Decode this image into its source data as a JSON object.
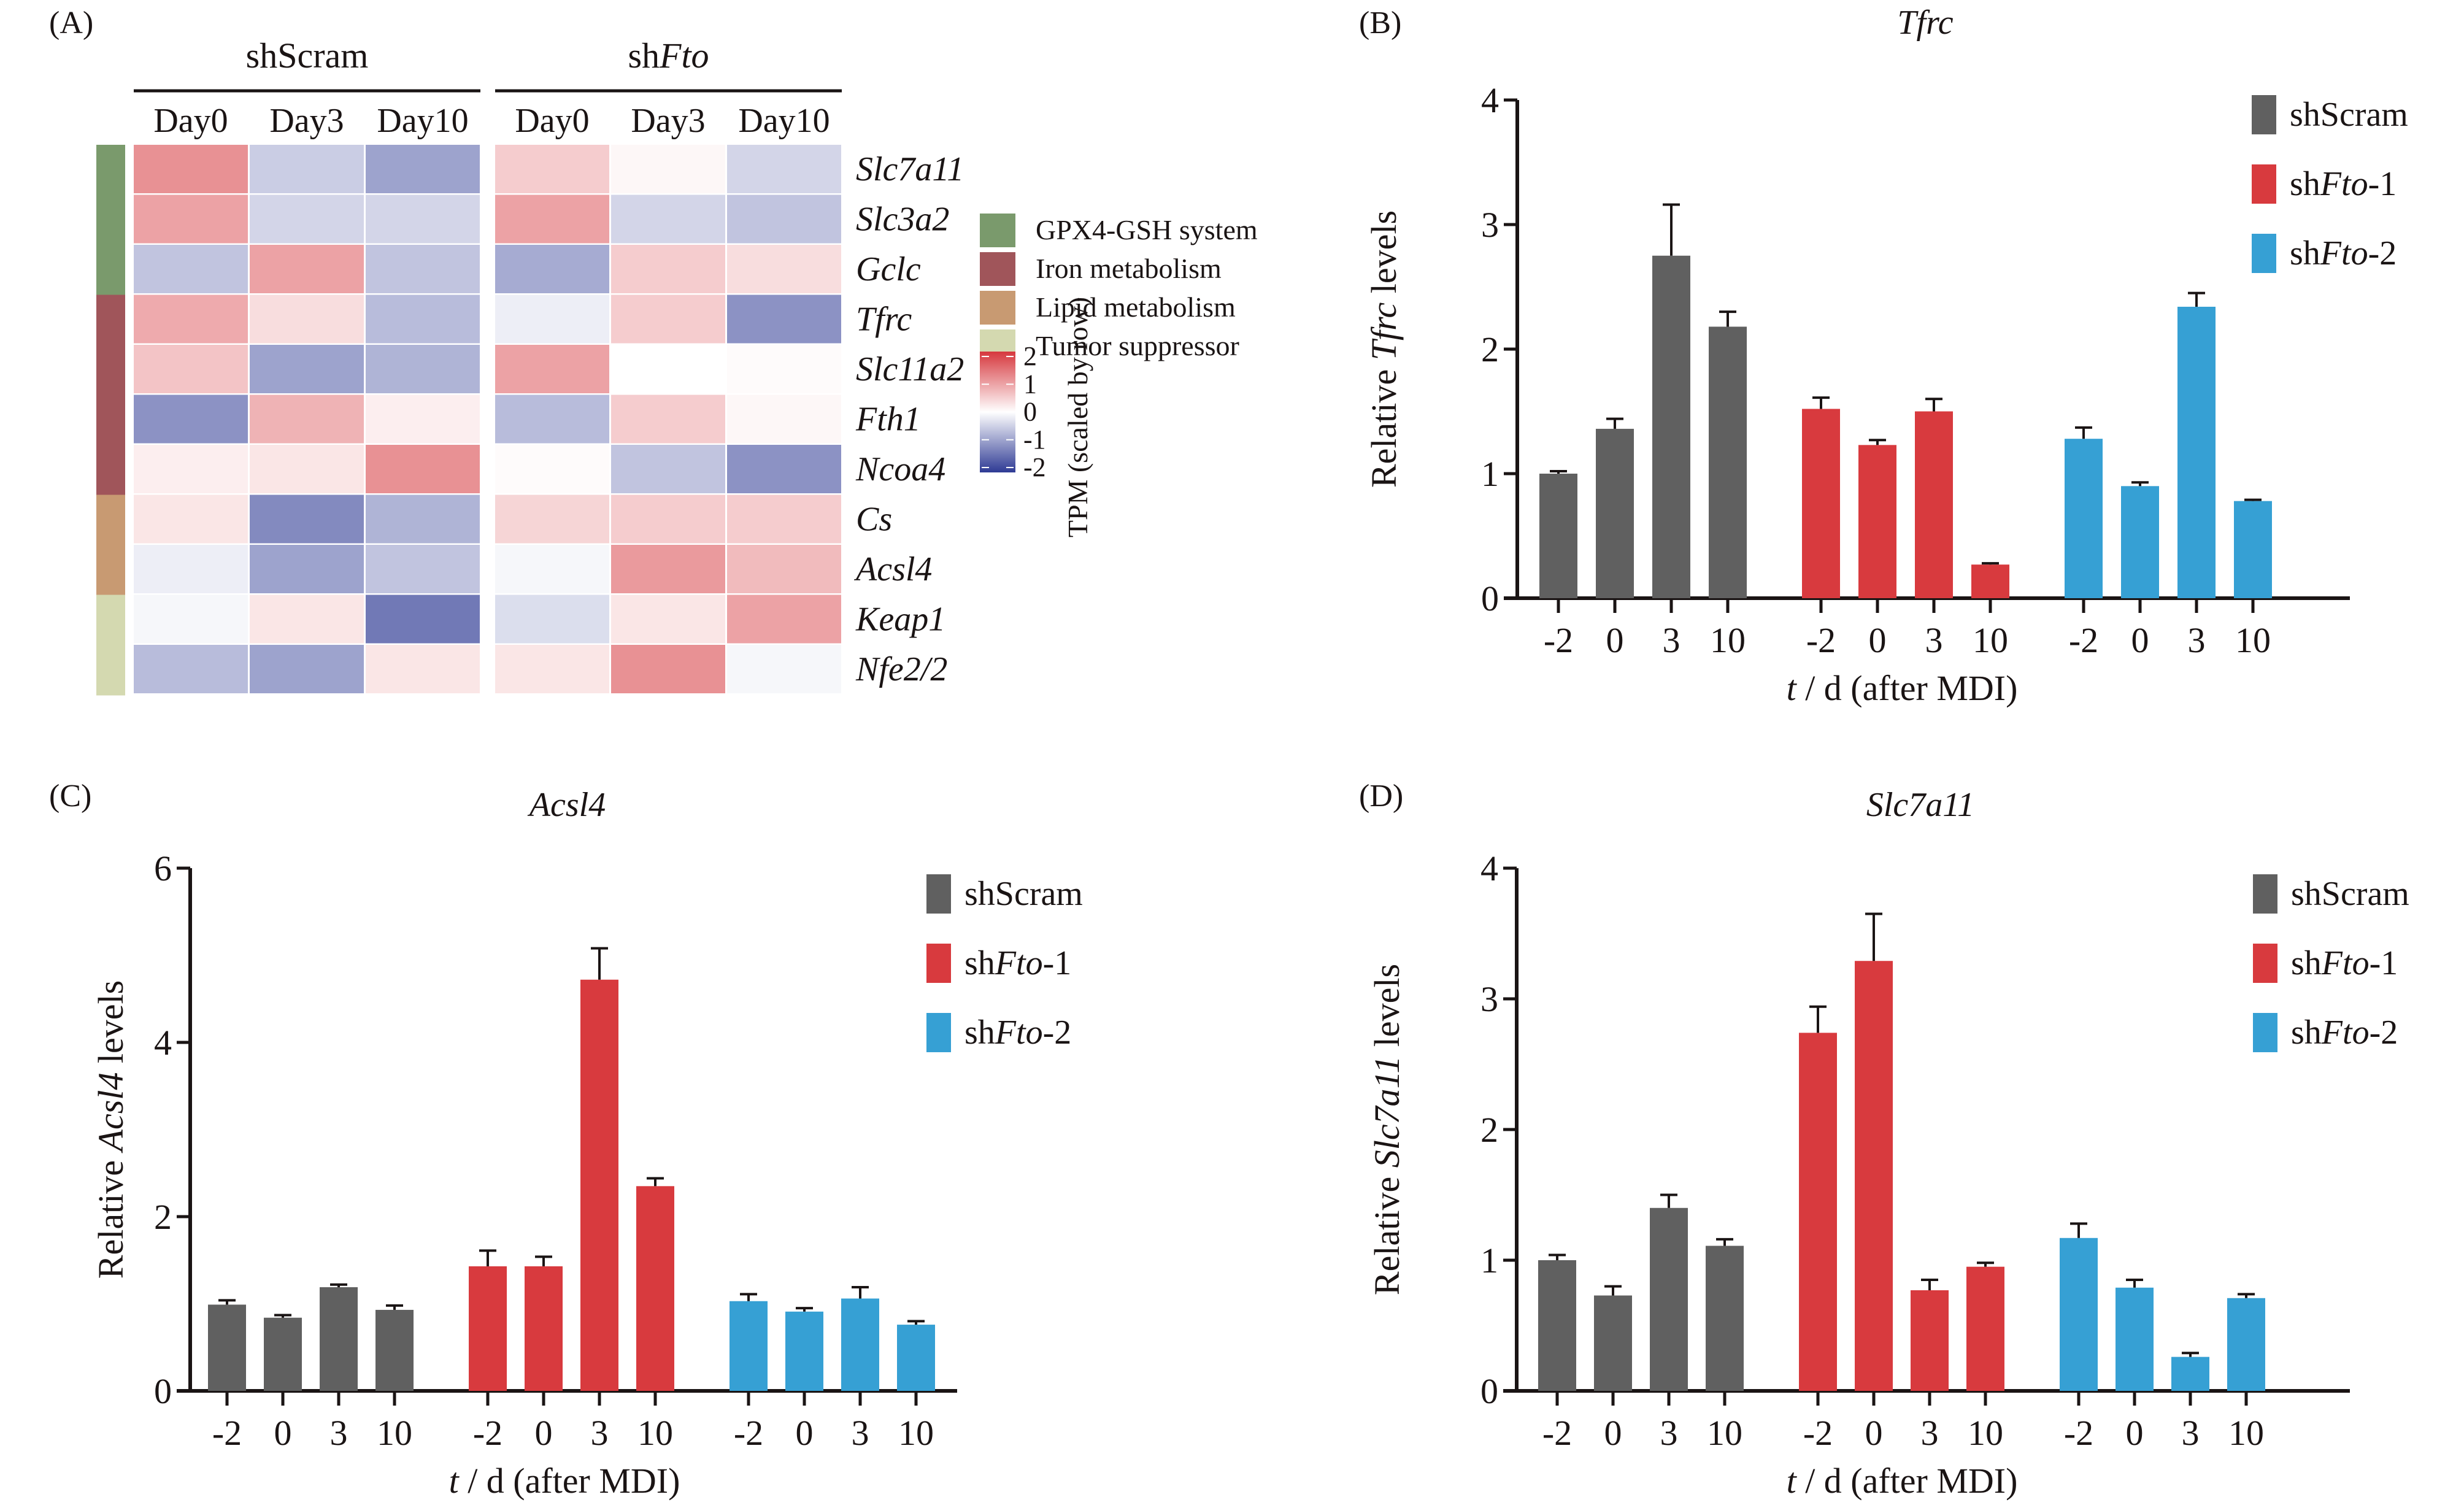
{
  "panel_labels": [
    "(A)",
    "(B)",
    "(C)",
    "(D)"
  ],
  "chart_data": [
    {
      "panel": "(A)",
      "type": "heatmap",
      "title": "",
      "group_labels": [
        {
          "prefix": "shScram",
          "italic": ""
        },
        {
          "prefix": "sh",
          "italic": "Fto"
        }
      ],
      "columns": [
        "Day0",
        "Day3",
        "Day10",
        "Day0",
        "Day3",
        "Day10"
      ],
      "rows": [
        "Slc7a11",
        "Slc3a2",
        "Gclc",
        "Tfrc",
        "Slc11a2",
        "Fth1",
        "Ncoa4",
        "Cs",
        "Acsl4",
        "Keap1",
        "Nfe2l2"
      ],
      "row_display": [
        "Slc7a11",
        "Slc3a2",
        "Gclc",
        "Tfrc",
        "Slc11a2",
        "Fth1",
        "Ncoa4",
        "Cs",
        "Acsl4",
        "Keap1",
        "Nfe2/2"
      ],
      "row_categories": [
        "GPX4-GSH system",
        "GPX4-GSH system",
        "GPX4-GSH system",
        "Iron metabolism",
        "Iron metabolism",
        "Iron metabolism",
        "Iron metabolism",
        "Lipid metabolism",
        "Lipid metabolism",
        "Tumor suppressor",
        "Tumor suppressor"
      ],
      "values": [
        [
          1.3,
          -0.6,
          -1.1,
          0.6,
          0.1,
          -0.5
        ],
        [
          1.1,
          -0.5,
          -0.5,
          1.1,
          -0.5,
          -0.7
        ],
        [
          -0.7,
          1.1,
          -0.7,
          -1.0,
          0.6,
          0.4
        ],
        [
          1.0,
          0.4,
          -0.8,
          -0.2,
          0.6,
          -1.3
        ],
        [
          0.7,
          -1.1,
          -0.9,
          1.1,
          0.0,
          0.05
        ],
        [
          -1.3,
          0.9,
          0.2,
          -0.8,
          0.6,
          0.1
        ],
        [
          0.2,
          0.3,
          1.3,
          0.05,
          -0.7,
          -1.3
        ],
        [
          0.3,
          -1.4,
          -0.9,
          0.5,
          0.6,
          0.6
        ],
        [
          -0.2,
          -1.1,
          -0.7,
          -0.1,
          1.2,
          0.8
        ],
        [
          -0.1,
          0.3,
          -1.6,
          -0.4,
          0.3,
          1.1
        ],
        [
          -0.8,
          -1.1,
          0.3,
          0.3,
          1.3,
          -0.1
        ]
      ],
      "category_legend": [
        {
          "label": "GPX4-GSH system",
          "color": "#7a9a6c"
        },
        {
          "label": "Iron metabolism",
          "color": "#a0555a"
        },
        {
          "label": "Lipid metabolism",
          "color": "#c89a72"
        },
        {
          "label": "Tumor suppressor",
          "color": "#d4d9b0"
        }
      ],
      "colorbar": {
        "label": "TPM (scaled by row)",
        "range": [
          -2,
          2
        ],
        "ticks": [
          "2",
          "1",
          "0",
          "-1",
          "-2"
        ],
        "low_color": "#2e3a94",
        "mid_color": "#ffffff",
        "high_color": "#d6383e"
      }
    },
    {
      "panel": "(B)",
      "type": "bar",
      "title": "Tfrc",
      "ylabel_prefix": "Relative ",
      "ylabel_italic": "Tfrc",
      "ylabel_suffix": " levels",
      "xlabel_italic": "t",
      "xlabel_rest": " / d (after MDI)",
      "categories": [
        "-2",
        "0",
        "3",
        "10"
      ],
      "ylim": [
        0,
        4
      ],
      "yticks": [
        "0",
        "1",
        "2",
        "3",
        "4"
      ],
      "series": [
        {
          "name": "shScram",
          "legend_prefix": "shScram",
          "legend_italic": "",
          "legend_suffix": "",
          "color": "#606060",
          "values": [
            1.0,
            1.36,
            2.75,
            2.18
          ],
          "errors": [
            0.02,
            0.08,
            0.41,
            0.12
          ]
        },
        {
          "name": "shFto-1",
          "legend_prefix": "sh",
          "legend_italic": "Fto",
          "legend_suffix": "-1",
          "color": "#d83a3e",
          "values": [
            1.52,
            1.23,
            1.5,
            0.27
          ],
          "errors": [
            0.09,
            0.04,
            0.1,
            0.01
          ]
        },
        {
          "name": "shFto-2",
          "legend_prefix": "sh",
          "legend_italic": "Fto",
          "legend_suffix": "-2",
          "color": "#36a0d4",
          "values": [
            1.28,
            0.9,
            2.34,
            0.78
          ],
          "errors": [
            0.09,
            0.03,
            0.11,
            0.01
          ]
        }
      ],
      "legend_position": "top-right"
    },
    {
      "panel": "(C)",
      "type": "bar",
      "title": "Acsl4",
      "ylabel_prefix": "Relative ",
      "ylabel_italic": "Acsl4",
      "ylabel_suffix": " levels",
      "xlabel_italic": "t",
      "xlabel_rest": " / d (after MDI)",
      "categories": [
        "-2",
        "0",
        "3",
        "10"
      ],
      "ylim": [
        0,
        6
      ],
      "yticks": [
        "0",
        "2",
        "4",
        "6"
      ],
      "series": [
        {
          "name": "shScram",
          "legend_prefix": "shScram",
          "legend_italic": "",
          "legend_suffix": "",
          "color": "#606060",
          "values": [
            0.99,
            0.84,
            1.19,
            0.93
          ],
          "errors": [
            0.05,
            0.03,
            0.03,
            0.05
          ]
        },
        {
          "name": "shFto-1",
          "legend_prefix": "sh",
          "legend_italic": "Fto",
          "legend_suffix": "-1",
          "color": "#d83a3e",
          "values": [
            1.43,
            1.43,
            4.72,
            2.35
          ],
          "errors": [
            0.18,
            0.11,
            0.36,
            0.09
          ]
        },
        {
          "name": "shFto-2",
          "legend_prefix": "sh",
          "legend_italic": "Fto",
          "legend_suffix": "-2",
          "color": "#36a0d4",
          "values": [
            1.03,
            0.91,
            1.06,
            0.76
          ],
          "errors": [
            0.08,
            0.04,
            0.13,
            0.04
          ]
        }
      ],
      "legend_position": "top-right"
    },
    {
      "panel": "(D)",
      "type": "bar",
      "title": "Slc7a11",
      "ylabel_prefix": "Relative ",
      "ylabel_italic": "Slc7a11",
      "ylabel_suffix": " levels",
      "xlabel_italic": "t",
      "xlabel_rest": " / d (after MDI)",
      "categories": [
        "-2",
        "0",
        "3",
        "10"
      ],
      "ylim": [
        0,
        4
      ],
      "yticks": [
        "0",
        "1",
        "2",
        "3",
        "4"
      ],
      "series": [
        {
          "name": "shScram",
          "legend_prefix": "shScram",
          "legend_italic": "",
          "legend_suffix": "",
          "color": "#606060",
          "values": [
            1.0,
            0.73,
            1.4,
            1.11
          ],
          "errors": [
            0.04,
            0.07,
            0.1,
            0.05
          ]
        },
        {
          "name": "shFto-1",
          "legend_prefix": "sh",
          "legend_italic": "Fto",
          "legend_suffix": "-1",
          "color": "#d83a3e",
          "values": [
            2.74,
            3.29,
            0.77,
            0.95
          ],
          "errors": [
            0.2,
            0.36,
            0.08,
            0.03
          ]
        },
        {
          "name": "shFto-2",
          "legend_prefix": "sh",
          "legend_italic": "Fto",
          "legend_suffix": "-2",
          "color": "#36a0d4",
          "values": [
            1.17,
            0.79,
            0.26,
            0.71
          ],
          "errors": [
            0.11,
            0.06,
            0.03,
            0.03
          ]
        }
      ],
      "legend_position": "top-right"
    }
  ]
}
